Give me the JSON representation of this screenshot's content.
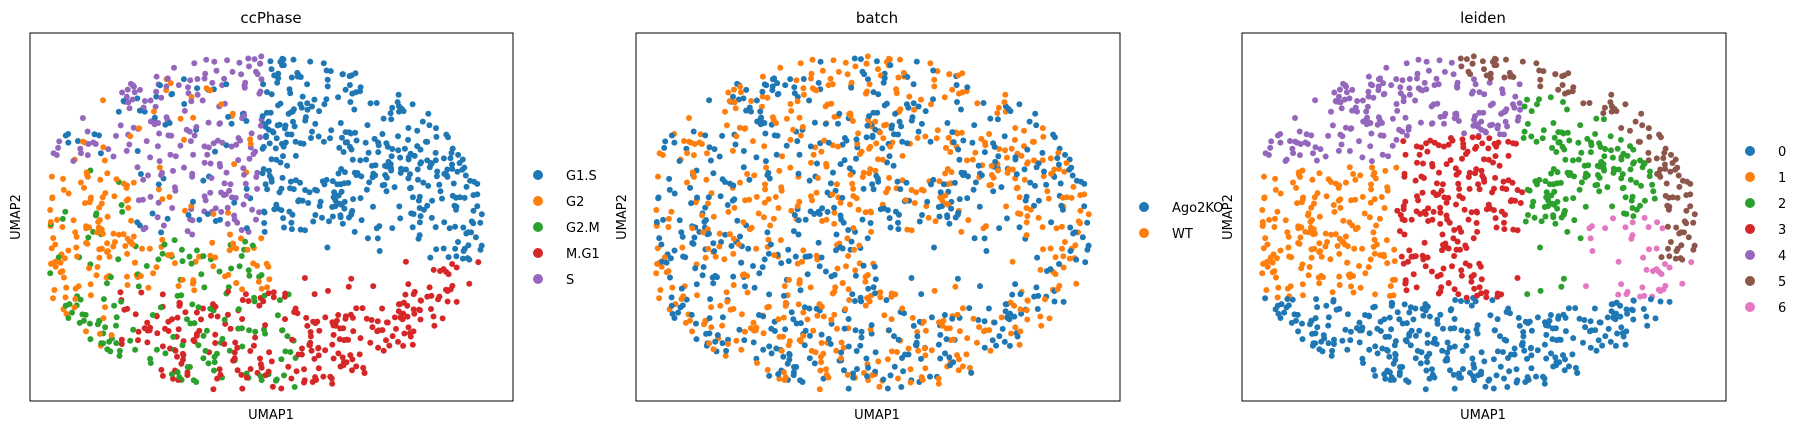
{
  "chart_data": [
    {
      "type": "scatter",
      "title": "ccPhase",
      "xlabel": "UMAP1",
      "ylabel": "UMAP2",
      "ticks": "none",
      "legend_position": "right",
      "legend": [
        {
          "label": "G1.S",
          "color": "#1f77b4"
        },
        {
          "label": "G2",
          "color": "#ff7f0e"
        },
        {
          "label": "G2.M",
          "color": "#2ca02c"
        },
        {
          "label": "M.G1",
          "color": "#d62728"
        },
        {
          "label": "S",
          "color": "#9467bd"
        }
      ]
    },
    {
      "type": "scatter",
      "title": "batch",
      "xlabel": "UMAP1",
      "ylabel": "UMAP2",
      "ticks": "none",
      "legend_position": "right",
      "legend": [
        {
          "label": "Ago2KO",
          "color": "#1f77b4"
        },
        {
          "label": "WT",
          "color": "#ff7f0e"
        }
      ]
    },
    {
      "type": "scatter",
      "title": "leiden",
      "xlabel": "UMAP1",
      "ylabel": "UMAP2",
      "ticks": "none",
      "legend_position": "right",
      "legend": [
        {
          "label": "0",
          "color": "#1f77b4"
        },
        {
          "label": "1",
          "color": "#ff7f0e"
        },
        {
          "label": "2",
          "color": "#2ca02c"
        },
        {
          "label": "3",
          "color": "#d62728"
        },
        {
          "label": "4",
          "color": "#9467bd"
        },
        {
          "label": "5",
          "color": "#8c564b"
        },
        {
          "label": "6",
          "color": "#e377c2"
        }
      ]
    }
  ]
}
